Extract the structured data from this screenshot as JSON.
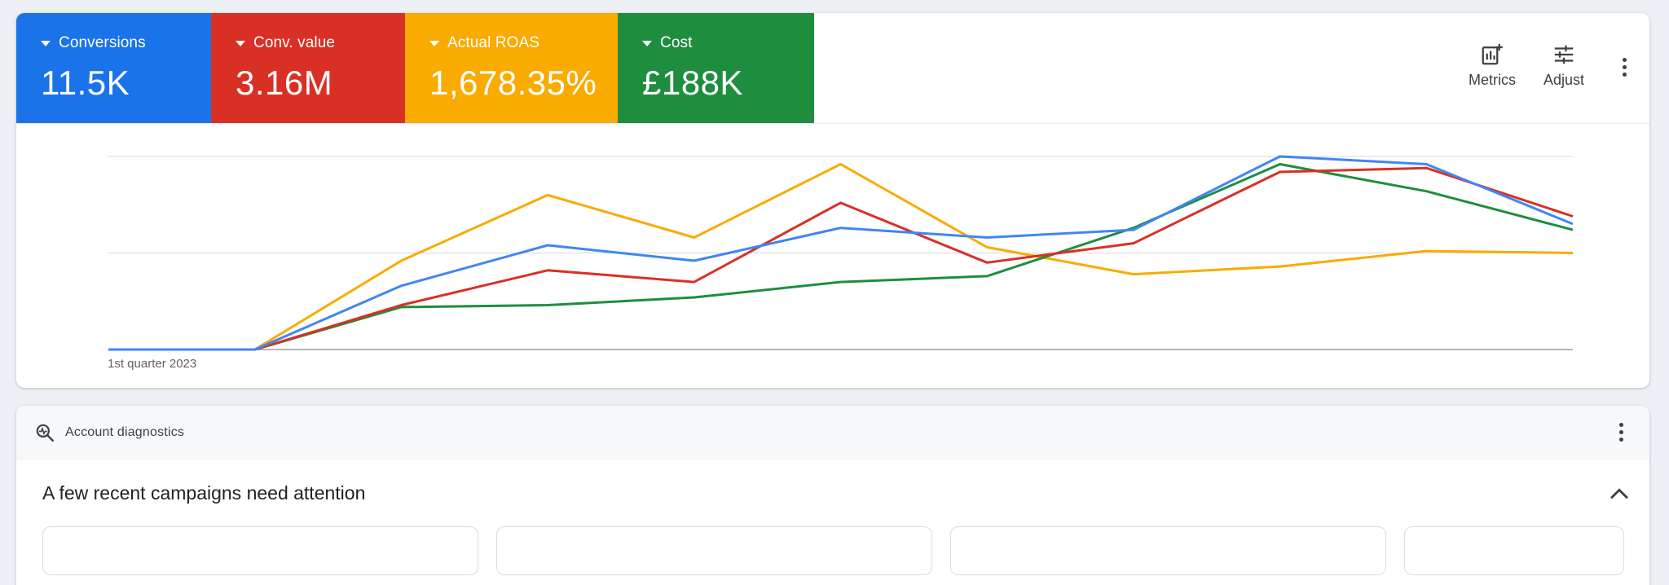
{
  "scorecards": [
    {
      "label": "Conversions",
      "value": "11.5K",
      "color": "#1a73e8"
    },
    {
      "label": "Conv. value",
      "value": "3.16M",
      "color": "#d93025"
    },
    {
      "label": "Actual ROAS",
      "value": "1,678.35%",
      "color": "#f9ab00"
    },
    {
      "label": "Cost",
      "value": "£188K",
      "color": "#1e8e3e"
    }
  ],
  "toolbar": {
    "metrics_label": "Metrics",
    "adjust_label": "Adjust"
  },
  "chart_data": {
    "type": "line",
    "title": "",
    "xlabel": "",
    "ylabel": "",
    "x_tick_labels": [
      "1st quarter 2023"
    ],
    "x": [
      0,
      1,
      2,
      3,
      4,
      5,
      6,
      7,
      8,
      9,
      10
    ],
    "ylim": [
      0,
      1
    ],
    "grid": true,
    "series": [
      {
        "name": "Conversions",
        "color": "#4285f4",
        "values": [
          0,
          0,
          0.33,
          0.54,
          0.46,
          0.63,
          0.58,
          0.62,
          1.0,
          0.96,
          0.65
        ]
      },
      {
        "name": "Conv. value",
        "color": "#d93025",
        "values": [
          0,
          0,
          0.23,
          0.41,
          0.35,
          0.76,
          0.45,
          0.55,
          0.92,
          0.94,
          0.69
        ]
      },
      {
        "name": "Actual ROAS",
        "color": "#f9ab00",
        "values": [
          0,
          0,
          0.46,
          0.8,
          0.58,
          0.96,
          0.53,
          0.39,
          0.43,
          0.51,
          0.5
        ]
      },
      {
        "name": "Cost",
        "color": "#1e8e3e",
        "values": [
          0,
          0,
          0.22,
          0.23,
          0.27,
          0.35,
          0.38,
          0.63,
          0.96,
          0.82,
          0.62
        ]
      }
    ]
  },
  "diagnostics": {
    "header_title": "Account diagnostics",
    "attention_text": "A few recent campaigns need attention"
  }
}
